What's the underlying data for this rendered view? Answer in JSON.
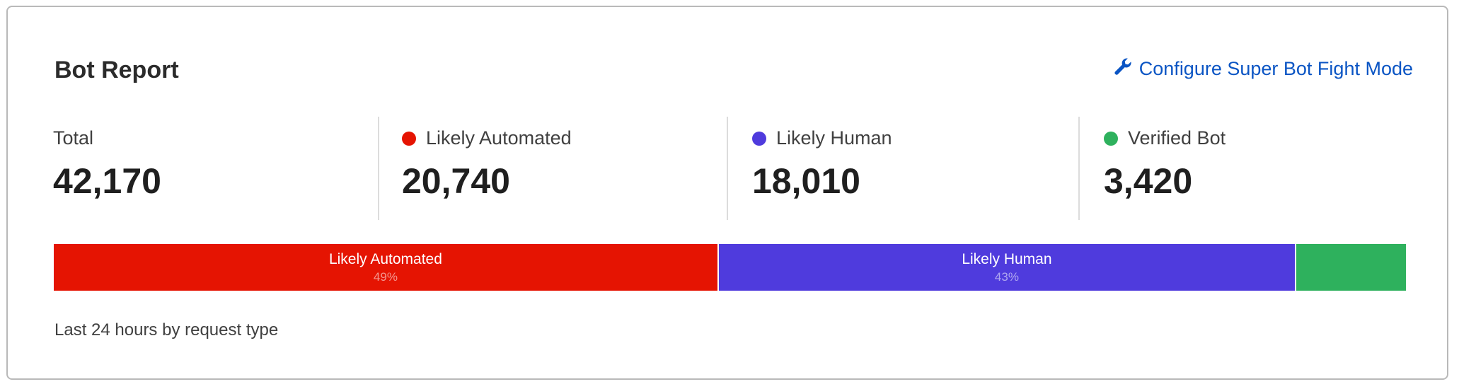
{
  "card": {
    "title": "Bot Report",
    "configure_link": {
      "label": "Configure Super Bot Fight Mode",
      "icon": "wrench-icon"
    },
    "stats": [
      {
        "label": "Total",
        "value": "42,170"
      },
      {
        "label": "Likely Automated",
        "value": "20,740",
        "color": "#e51402"
      },
      {
        "label": "Likely Human",
        "value": "18,010",
        "color": "#4f3bdd"
      },
      {
        "label": "Verified Bot",
        "value": "3,420",
        "color": "#2eb15d"
      }
    ],
    "bar": [
      {
        "label": "Likely Automated",
        "percent_label": "49%",
        "value": 20740,
        "color": "#e51402"
      },
      {
        "label": "Likely Human",
        "percent_label": "43%",
        "value": 18010,
        "color": "#4f3bdd"
      },
      {
        "label": "",
        "percent_label": "",
        "value": 3420,
        "color": "#2eb15d"
      }
    ],
    "footer": "Last 24 hours by request type"
  }
}
